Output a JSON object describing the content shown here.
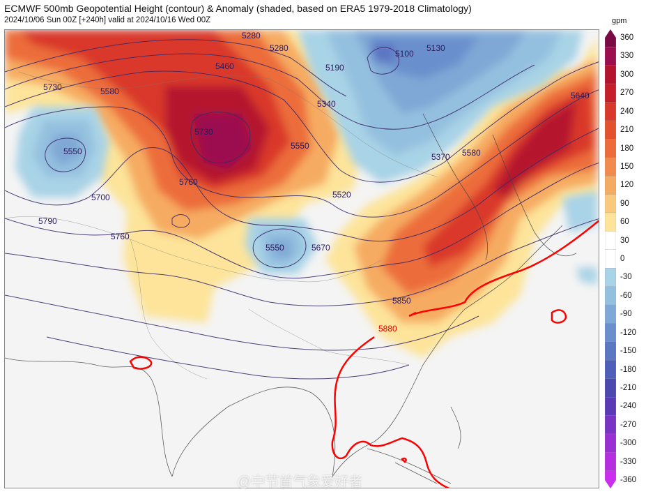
{
  "header": {
    "title": "ECMWF 500mb Geopotential Height (contour) & Anomaly (shaded, based on ERA5 1979-2018 Climatology)",
    "subtitle": "2024/10/06 Sun 00Z [+240h] valid at 2024/10/16 Wed 00Z"
  },
  "colorbar": {
    "unit": "gpm",
    "ticks": [
      "360",
      "330",
      "300",
      "270",
      "240",
      "210",
      "180",
      "150",
      "120",
      "90",
      "60",
      "30",
      "0",
      "-30",
      "-60",
      "-90",
      "-120",
      "-150",
      "-180",
      "-210",
      "-240",
      "-270",
      "-300",
      "-330",
      "-360"
    ],
    "colors": [
      "#7a0b45",
      "#9c0f4f",
      "#b5142f",
      "#c71f2a",
      "#d9392a",
      "#e3522f",
      "#ec6d3b",
      "#f28c4e",
      "#f6ab62",
      "#f9c97d",
      "#fde49a",
      "#ffffff",
      "#ffffff",
      "#a9d3e6",
      "#94c0df",
      "#7fa8d6",
      "#6b8fcd",
      "#5b76c3",
      "#4f5fb9",
      "#4b48ae",
      "#5a3bb5",
      "#7a34c4",
      "#9a2fd2",
      "#b52ee0",
      "#cc2ef0"
    ]
  },
  "map_labels": {
    "contours": [
      "5280",
      "5280",
      "5460",
      "5340",
      "5190",
      "5100",
      "5130",
      "5730",
      "5580",
      "5730",
      "5550",
      "5550",
      "5760",
      "5700",
      "5790",
      "5760",
      "5520",
      "5670",
      "5550",
      "5370",
      "5580",
      "5640",
      "5850",
      "5880"
    ],
    "watermark": "@中节首气象爱好者"
  },
  "legend_colors": {
    "ridge_subtropical": "#ff0000",
    "contour_line": "#3b2a6a"
  }
}
